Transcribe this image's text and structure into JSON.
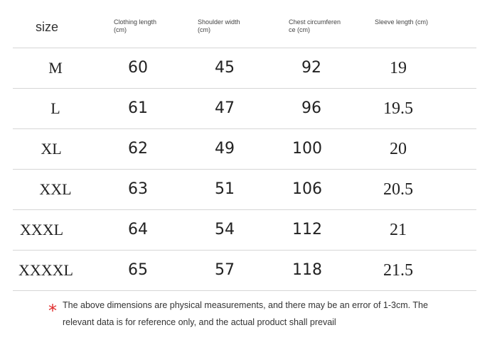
{
  "table": {
    "headers": [
      "size",
      "Clothing length\n(cm)",
      "Shoulder width\n(cm)",
      "Chest circumferen\nce (cm)",
      "Sleeve length (cm)"
    ],
    "rows": [
      {
        "size": "M",
        "clothing_length": "60",
        "shoulder_width": "45",
        "chest": "92",
        "sleeve": "19"
      },
      {
        "size": "L",
        "clothing_length": "61",
        "shoulder_width": "47",
        "chest": "96",
        "sleeve": "19.5"
      },
      {
        "size": "XL",
        "clothing_length": "62",
        "shoulder_width": "49",
        "chest": "100",
        "sleeve": "20"
      },
      {
        "size": "XXL",
        "clothing_length": "63",
        "shoulder_width": "51",
        "chest": "106",
        "sleeve": "20.5"
      },
      {
        "size": "XXXL",
        "clothing_length": "64",
        "shoulder_width": "54",
        "chest": "112",
        "sleeve": "21"
      },
      {
        "size": "XXXXL",
        "clothing_length": "65",
        "shoulder_width": "57",
        "chest": "118",
        "sleeve": "21.5"
      }
    ]
  },
  "note": {
    "mark": "*",
    "text": "The above dimensions are physical measurements, and there may be an error of 1-3cm. The relevant data is for reference only, and the actual product shall prevail"
  },
  "colors": {
    "accent": "#e02a2a",
    "divider": "#d6d6d6"
  }
}
